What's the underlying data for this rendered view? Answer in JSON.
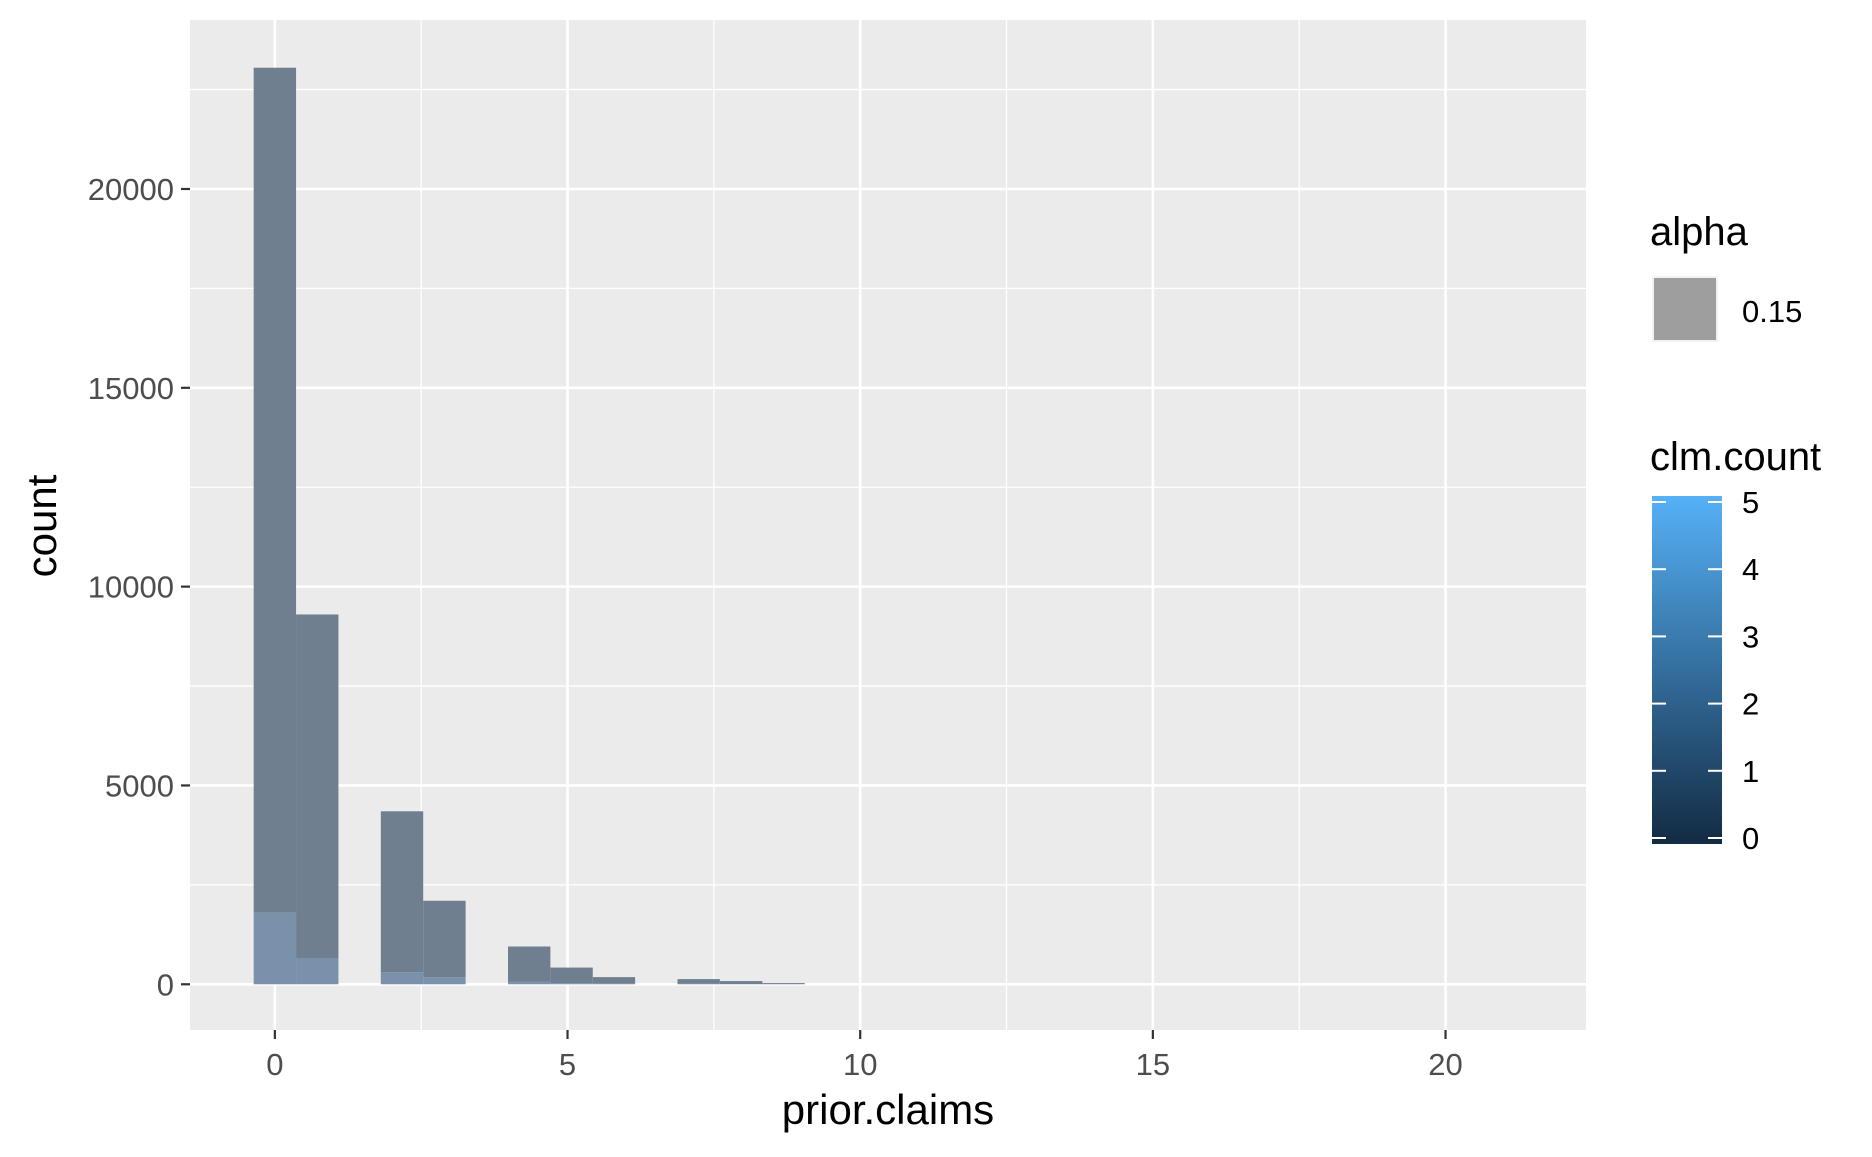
{
  "chart_data": {
    "type": "bar",
    "xlabel": "prior.claims",
    "ylabel": "count",
    "xlim": [
      -1.45,
      22.4
    ],
    "ylim": [
      -1150,
      24250
    ],
    "x_ticks": [
      0,
      5,
      10,
      15,
      20
    ],
    "x_tick_labels": [
      "0",
      "5",
      "10",
      "15",
      "20"
    ],
    "y_ticks": [
      0,
      5000,
      10000,
      15000,
      20000
    ],
    "y_tick_labels": [
      "0",
      "5000",
      "10000",
      "15000",
      "20000"
    ],
    "grid": true,
    "bin_width": 0.724,
    "bars": [
      {
        "x_left": -0.362,
        "x_right": 0.362,
        "total": 23050,
        "light": 1800
      },
      {
        "x_left": 0.362,
        "x_right": 1.086,
        "total": 9300,
        "light": 650
      },
      {
        "x_left": 1.81,
        "x_right": 2.534,
        "total": 4350,
        "light": 300
      },
      {
        "x_left": 2.534,
        "x_right": 3.259,
        "total": 2100,
        "light": 180
      },
      {
        "x_left": 3.983,
        "x_right": 4.707,
        "total": 950,
        "light": 60
      },
      {
        "x_left": 4.707,
        "x_right": 5.431,
        "total": 420,
        "light": 30
      },
      {
        "x_left": 5.431,
        "x_right": 6.155,
        "total": 180,
        "light": 15
      },
      {
        "x_left": 6.879,
        "x_right": 7.603,
        "total": 130,
        "light": 10
      },
      {
        "x_left": 7.603,
        "x_right": 8.328,
        "total": 80,
        "light": 5
      },
      {
        "x_left": 8.328,
        "x_right": 9.052,
        "total": 30,
        "light": 2
      }
    ],
    "legends": {
      "alpha": {
        "title": "alpha",
        "value_label": "0.15",
        "swatch_color": "#9e9e9e"
      },
      "clm_count": {
        "title": "clm.count",
        "type": "colorbar",
        "labels": [
          "0",
          "1",
          "2",
          "3",
          "4",
          "5"
        ],
        "values": [
          0,
          1,
          2,
          3,
          4,
          5
        ],
        "low_color": "#132b43",
        "high_color": "#56b1f7"
      }
    },
    "colors": {
      "panel_background": "#ebebeb",
      "grid_major": "#ffffff",
      "bar_dark": "#6f7f8f",
      "bar_light": "#7a91ab",
      "axis_text": "#4d4d4d"
    }
  }
}
